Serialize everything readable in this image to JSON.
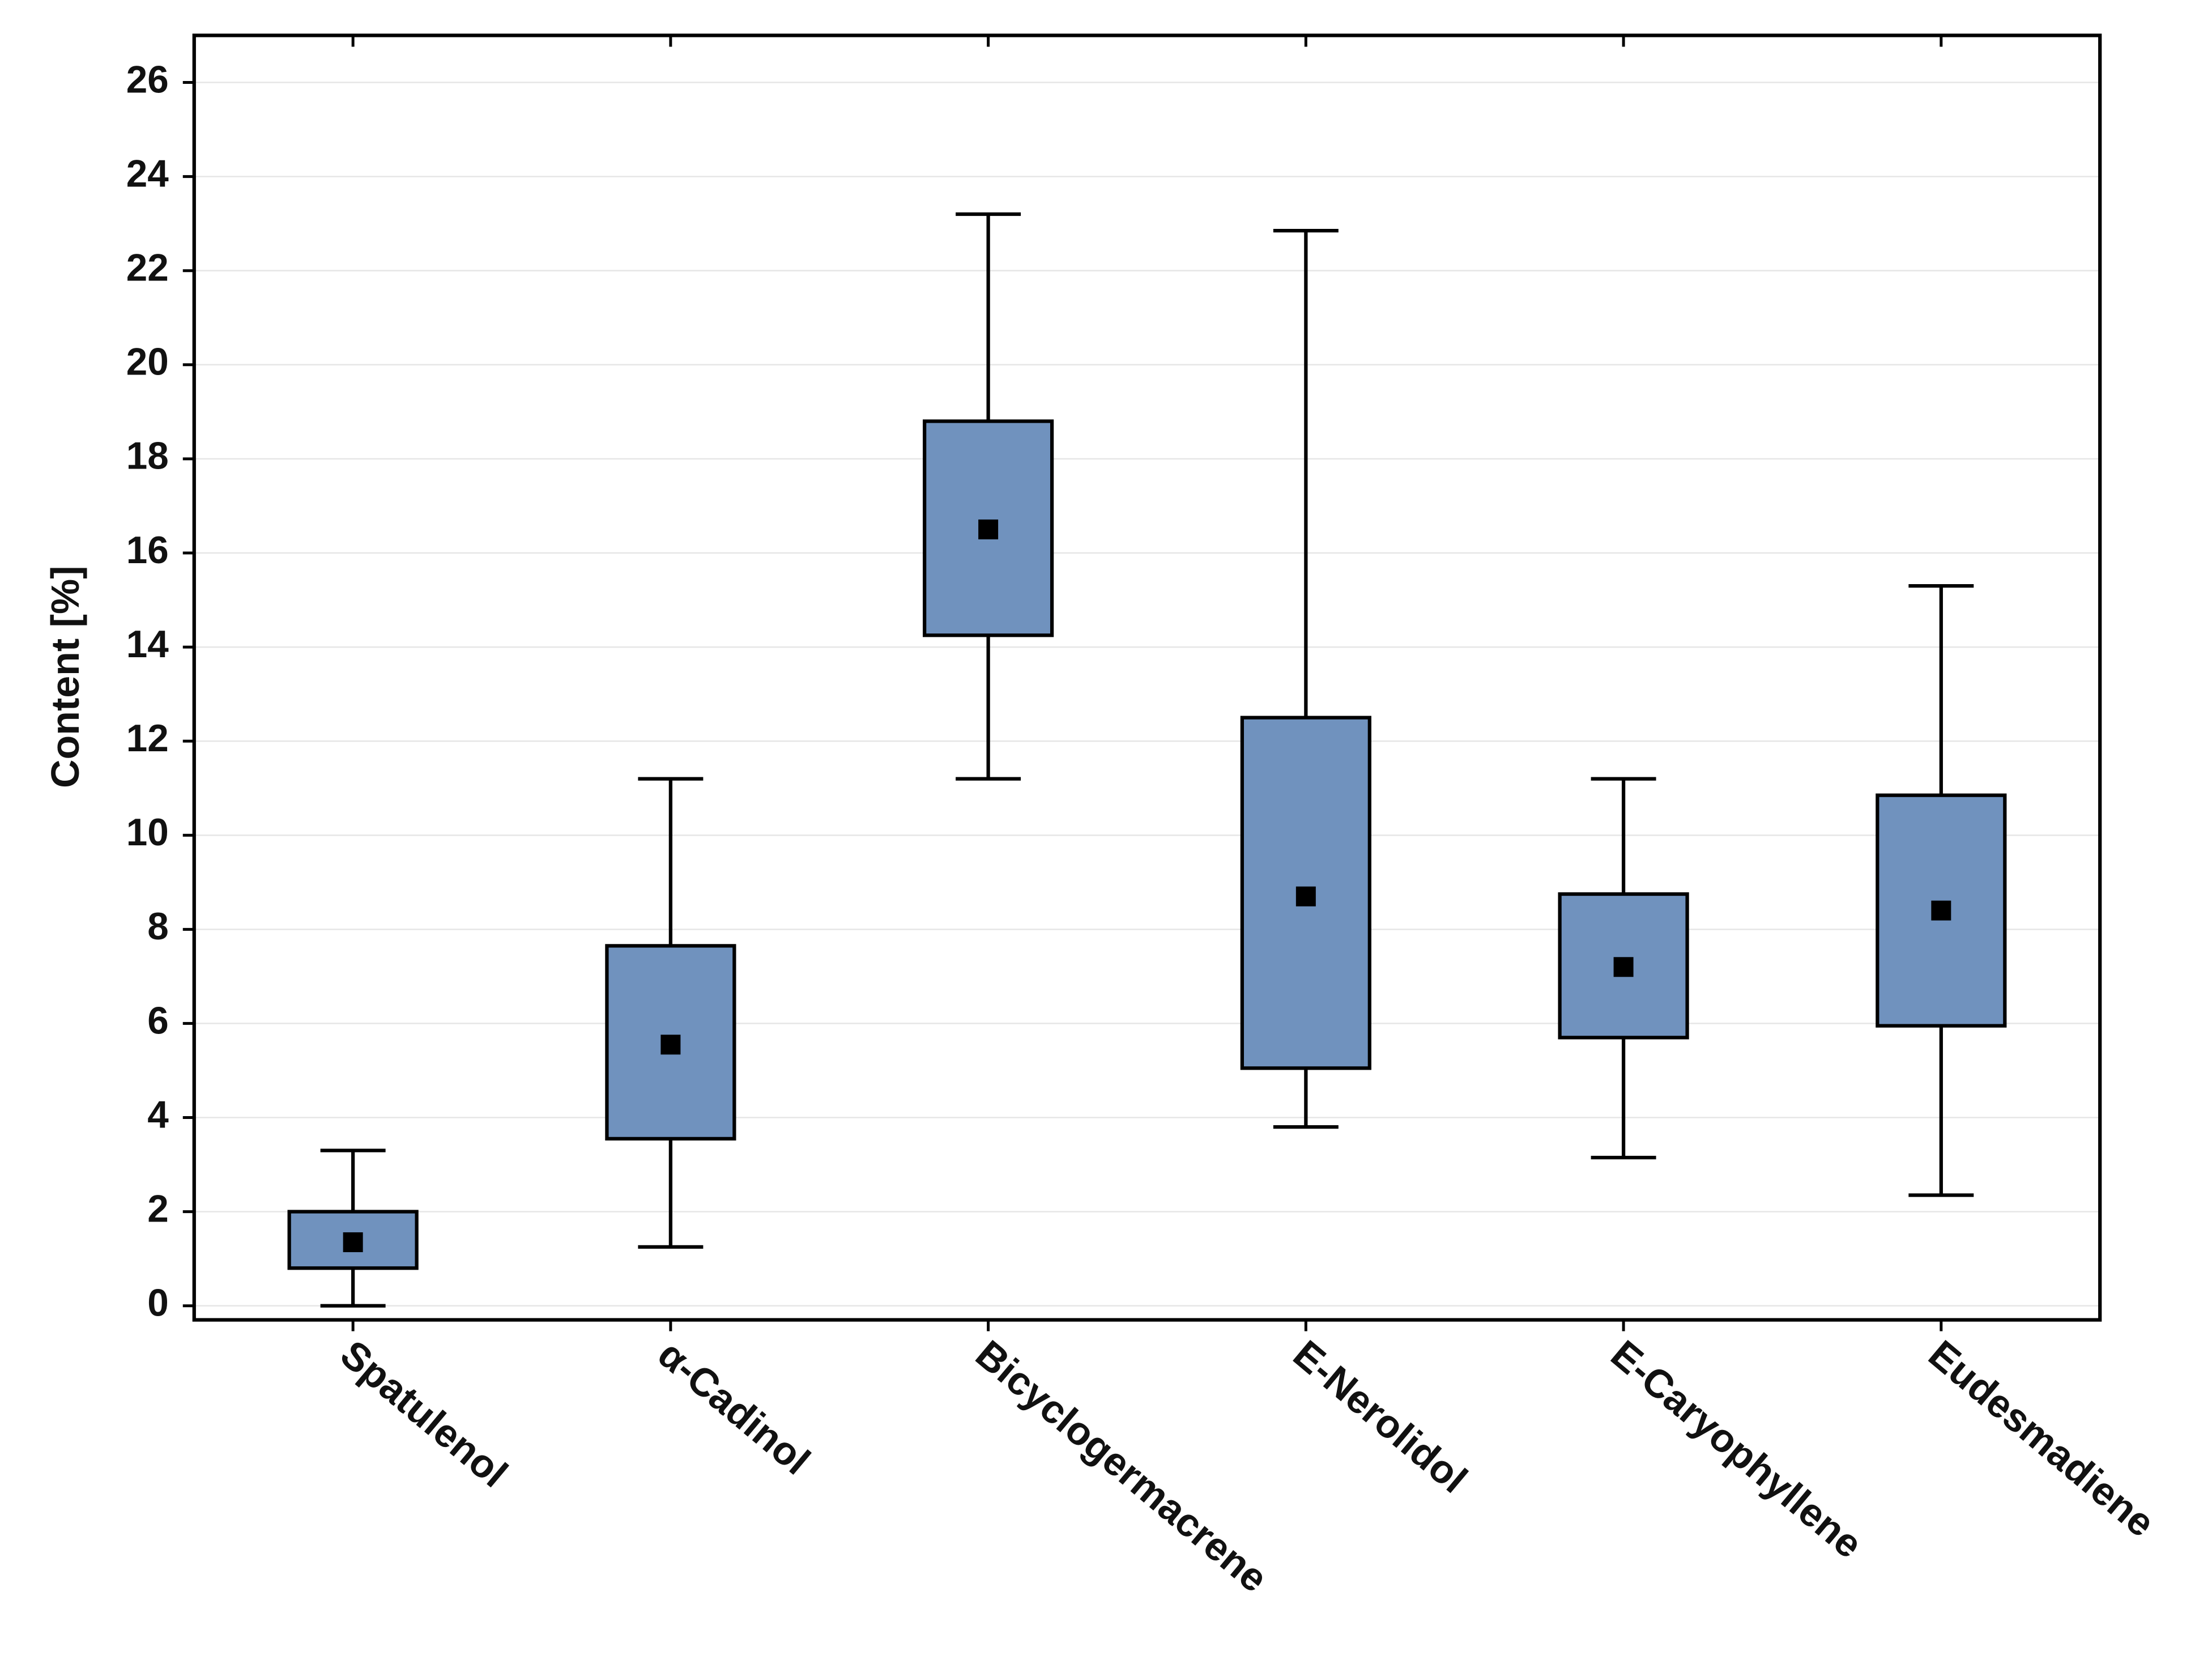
{
  "chart_data": {
    "type": "box",
    "y_label": "Content [%]",
    "categories": [
      "Spatulenol",
      "α-Cadinol",
      "Bicyclogermacrene",
      "E-Nerolidol",
      "E-Caryophyllene",
      "Eudesmadiene"
    ],
    "min": [
      0,
      1.25,
      11.2,
      3.8,
      3.15,
      2.35
    ],
    "q1": [
      0.8,
      3.55,
      14.25,
      5.05,
      5.7,
      5.95
    ],
    "median": [
      1.35,
      5.55,
      16.5,
      8.7,
      7.2,
      8.4
    ],
    "q3": [
      2.0,
      7.65,
      18.8,
      12.5,
      8.75,
      10.85
    ],
    "max": [
      3.3,
      11.2,
      23.2,
      22.85,
      11.2,
      15.3
    ],
    "color": "#7092be",
    "ylim": [
      -0.3,
      27
    ],
    "yticks": [
      0,
      2,
      4,
      6,
      8,
      10,
      12,
      14,
      16,
      18,
      20,
      22,
      24,
      26
    ],
    "grid": true
  }
}
